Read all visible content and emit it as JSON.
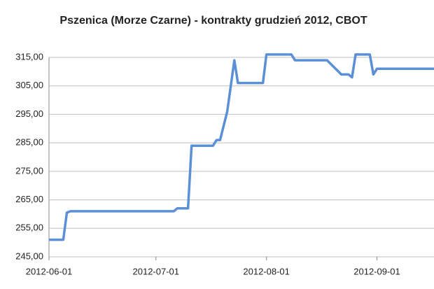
{
  "chart_data": {
    "type": "line",
    "title": "Pszenica (Morze Czarne) - kontrakty grudzień 2012, CBOT",
    "x": [
      "2012-06-01",
      "2012-06-05",
      "2012-06-06",
      "2012-06-07",
      "2012-07-06",
      "2012-07-07",
      "2012-07-10",
      "2012-07-11",
      "2012-07-17",
      "2012-07-18",
      "2012-07-19",
      "2012-07-21",
      "2012-07-23",
      "2012-07-24",
      "2012-07-31",
      "2012-08-01",
      "2012-08-08",
      "2012-08-09",
      "2012-08-18",
      "2012-08-22",
      "2012-08-24",
      "2012-08-25",
      "2012-08-26",
      "2012-08-30",
      "2012-08-31",
      "2012-09-01",
      "2012-09-17"
    ],
    "values": [
      251,
      251,
      260.5,
      261,
      261,
      262,
      262,
      284,
      284,
      286,
      286,
      296,
      314,
      306,
      306,
      316,
      316,
      314,
      314,
      309,
      309,
      308,
      316,
      316,
      309,
      311,
      311
    ],
    "color": "#5b8fd6",
    "xlim": [
      "2012-06-01",
      "2012-09-17"
    ],
    "xticks": [
      "2012-06-01",
      "2012-07-01",
      "2012-08-01",
      "2012-09-01"
    ],
    "ylim": [
      245,
      315
    ],
    "yticks": [
      {
        "value": 245,
        "label": "245,00"
      },
      {
        "value": 255,
        "label": "255,00"
      },
      {
        "value": 265,
        "label": "265,00"
      },
      {
        "value": 275,
        "label": "275,00"
      },
      {
        "value": 285,
        "label": "285,00"
      },
      {
        "value": 295,
        "label": "295,00"
      },
      {
        "value": 305,
        "label": "305,00"
      },
      {
        "value": 315,
        "label": "315,00"
      }
    ],
    "grid": true
  }
}
